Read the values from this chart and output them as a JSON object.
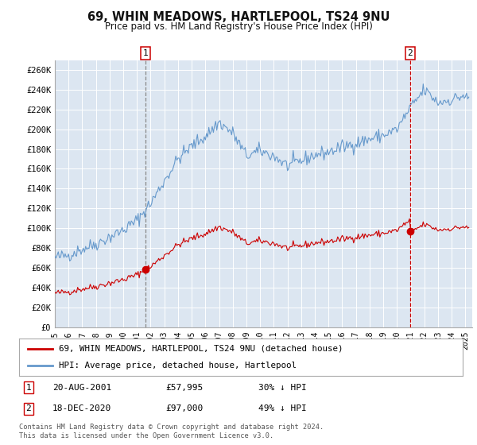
{
  "title1": "69, WHIN MEADOWS, HARTLEPOOL, TS24 9NU",
  "title2": "Price paid vs. HM Land Registry's House Price Index (HPI)",
  "ylim": [
    0,
    270000
  ],
  "yticks": [
    0,
    20000,
    40000,
    60000,
    80000,
    100000,
    120000,
    140000,
    160000,
    180000,
    200000,
    220000,
    240000,
    260000
  ],
  "xlim_start": 1995.0,
  "xlim_end": 2025.5,
  "figure_bg": "#ffffff",
  "plot_bg_color": "#dce6f1",
  "grid_color": "#ffffff",
  "hpi_color": "#6699cc",
  "price_color": "#cc0000",
  "marker1_t": 2001.6389,
  "marker1_price": 57995,
  "marker1_label": "20-AUG-2001",
  "marker1_amount": "£57,995",
  "marker1_pct": "30% ↓ HPI",
  "marker2_t": 2020.9583,
  "marker2_price": 97000,
  "marker2_label": "18-DEC-2020",
  "marker2_amount": "£97,000",
  "marker2_pct": "49% ↓ HPI",
  "legend_line1": "69, WHIN MEADOWS, HARTLEPOOL, TS24 9NU (detached house)",
  "legend_line2": "HPI: Average price, detached house, Hartlepool",
  "footnote": "Contains HM Land Registry data © Crown copyright and database right 2024.\nThis data is licensed under the Open Government Licence v3.0.",
  "xtick_years": [
    1995,
    1996,
    1997,
    1998,
    1999,
    2000,
    2001,
    2002,
    2003,
    2004,
    2005,
    2006,
    2007,
    2008,
    2009,
    2010,
    2011,
    2012,
    2013,
    2014,
    2015,
    2016,
    2017,
    2018,
    2019,
    2020,
    2021,
    2022,
    2023,
    2024,
    2025
  ]
}
